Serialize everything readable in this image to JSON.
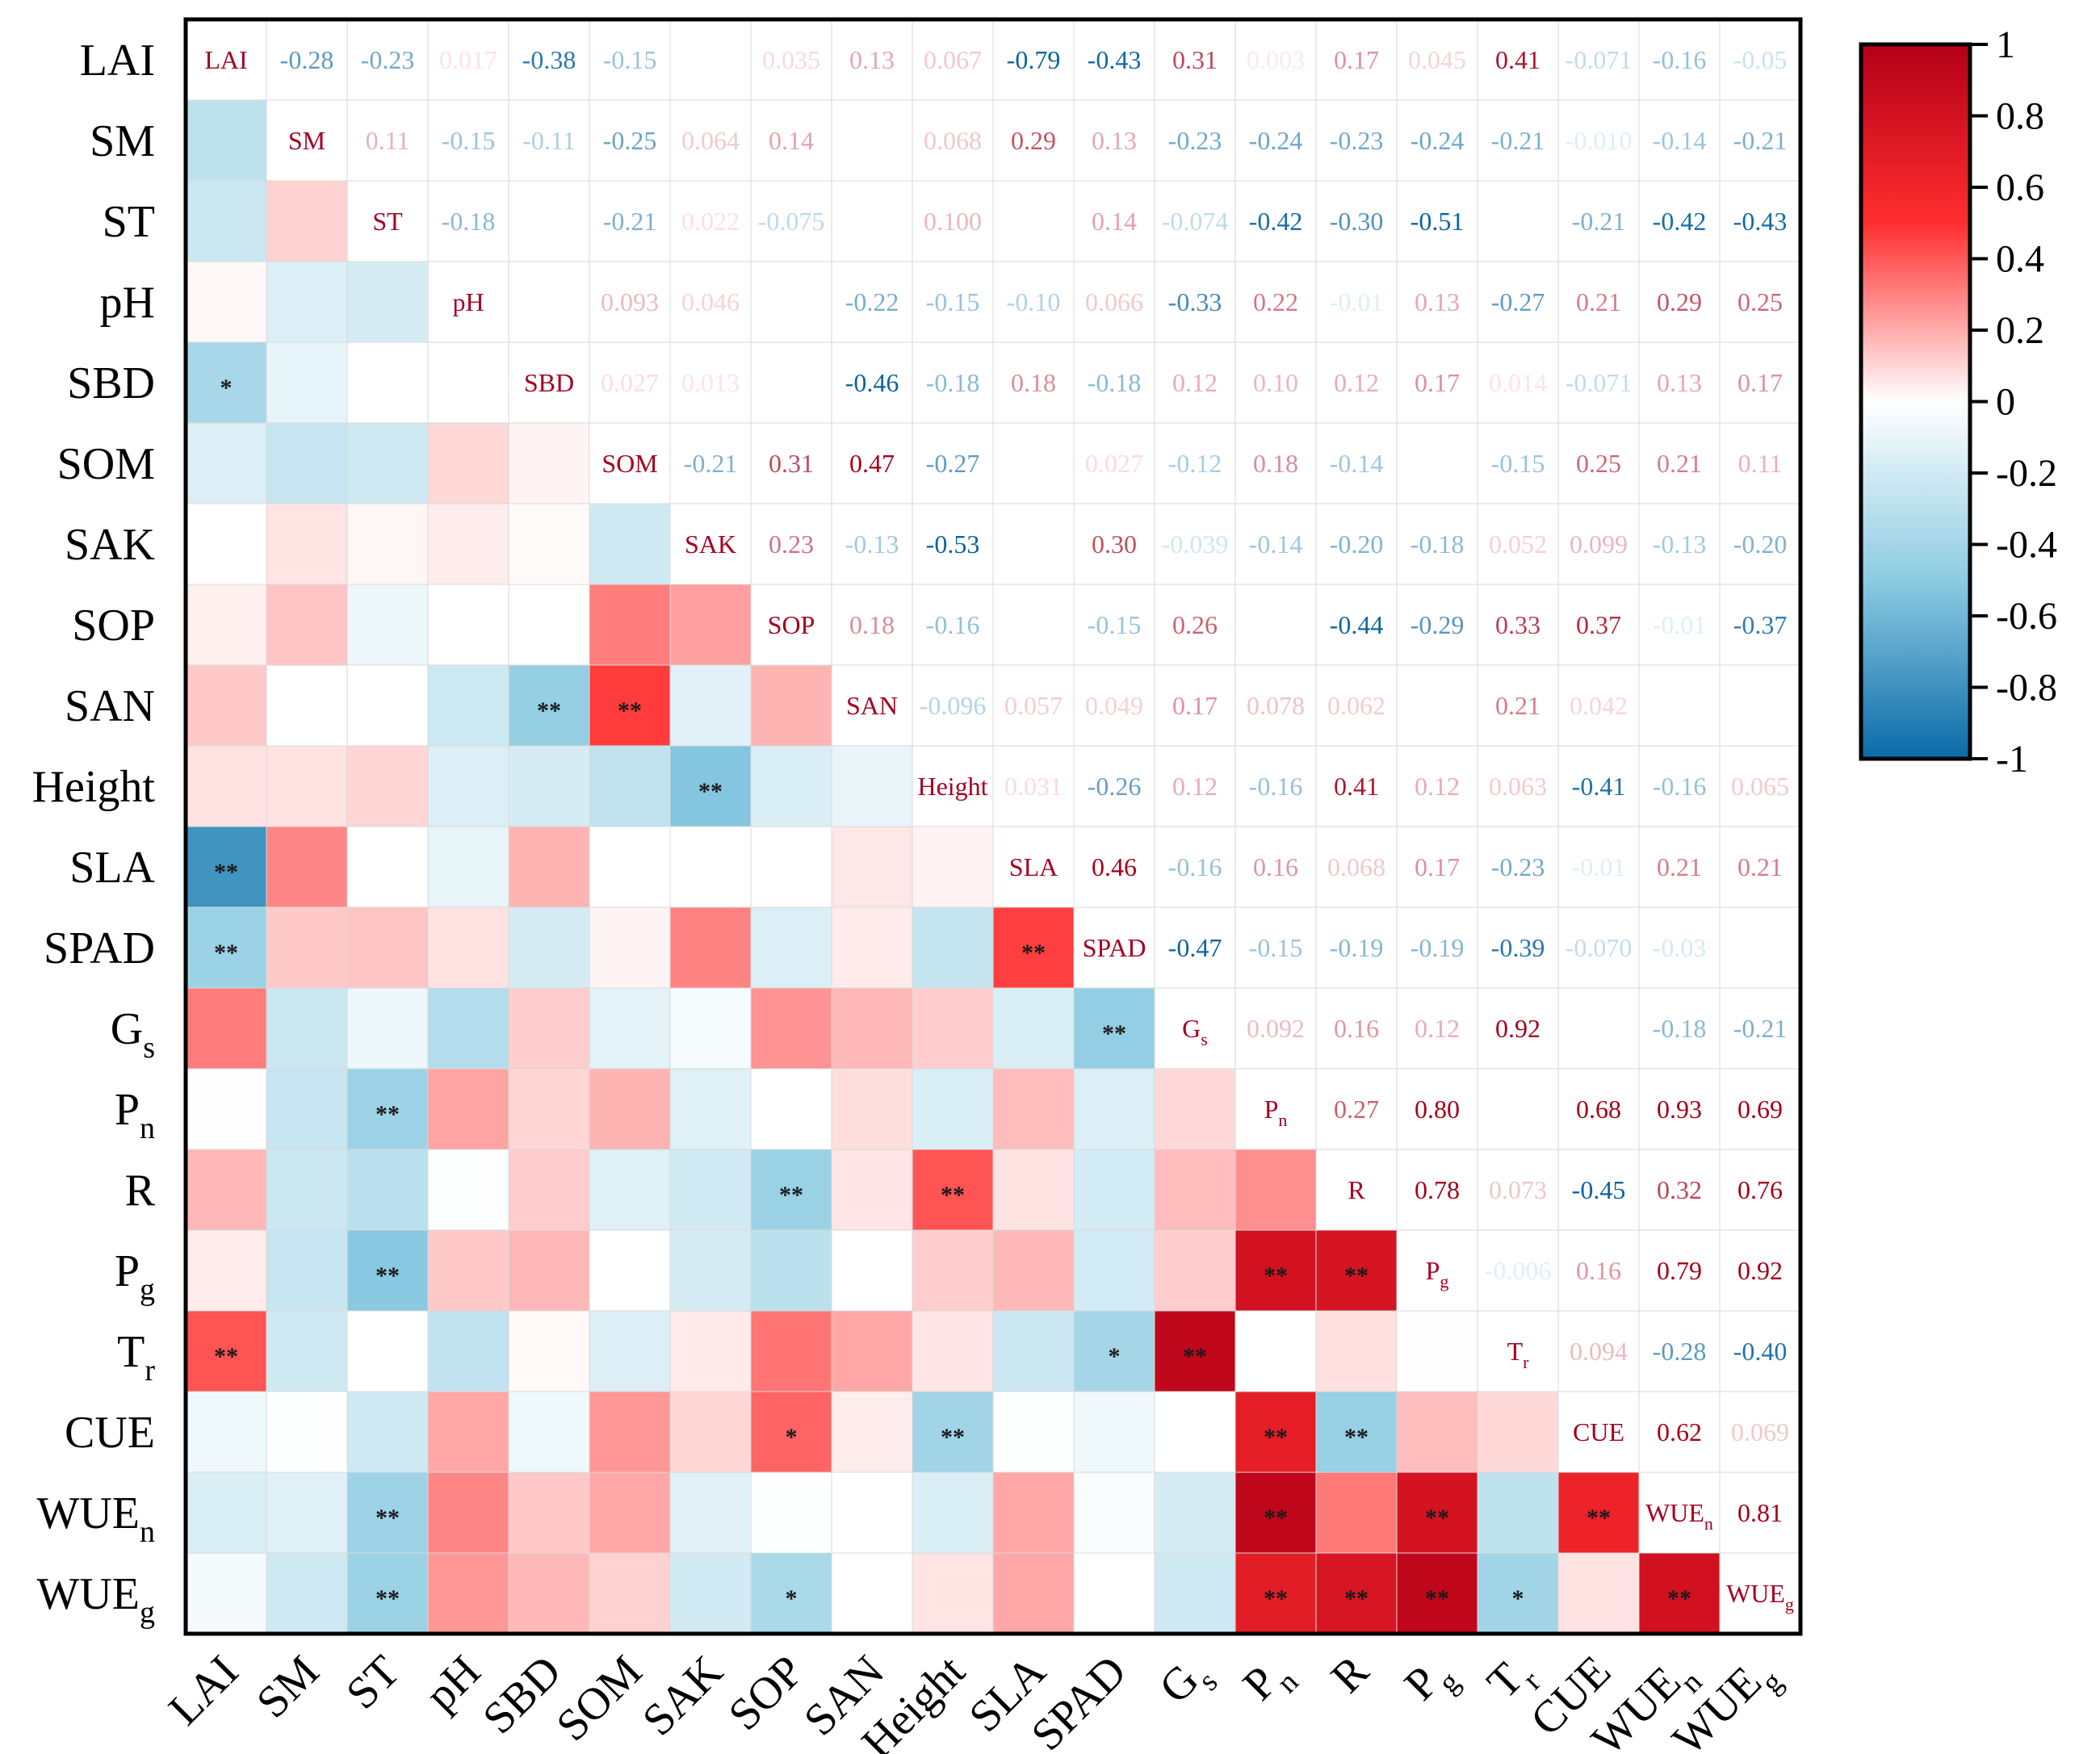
{
  "chart_data": {
    "type": "heatmap",
    "subtype": "correlation-matrix",
    "variables": [
      {
        "label": "LAI",
        "sub": ""
      },
      {
        "label": "SM",
        "sub": ""
      },
      {
        "label": "ST",
        "sub": ""
      },
      {
        "label": "pH",
        "sub": ""
      },
      {
        "label": "SBD",
        "sub": ""
      },
      {
        "label": "SOM",
        "sub": ""
      },
      {
        "label": "SAK",
        "sub": ""
      },
      {
        "label": "SOP",
        "sub": ""
      },
      {
        "label": "SAN",
        "sub": ""
      },
      {
        "label": "Height",
        "sub": ""
      },
      {
        "label": "SLA",
        "sub": ""
      },
      {
        "label": "SPAD",
        "sub": ""
      },
      {
        "label": "G",
        "sub": "s"
      },
      {
        "label": "P",
        "sub": "n"
      },
      {
        "label": "R",
        "sub": ""
      },
      {
        "label": "P",
        "sub": "g"
      },
      {
        "label": "T",
        "sub": "r"
      },
      {
        "label": "CUE",
        "sub": ""
      },
      {
        "label": "WUE",
        "sub": "n"
      },
      {
        "label": "WUE",
        "sub": "g"
      }
    ],
    "upper_triangle_labels": [
      [
        "-0.28",
        "-0.23",
        "0.017",
        "-0.38",
        "-0.15",
        "",
        "0.035",
        "0.13",
        "0.067",
        "-0.79",
        "-0.43",
        "0.31",
        "0.003",
        "0.17",
        "0.045",
        "0.41",
        "-0.071",
        "-0.16",
        "-0.05"
      ],
      [
        "0.11",
        "-0.15",
        "-0.11",
        "-0.25",
        "0.064",
        "0.14",
        "",
        "0.068",
        "0.29",
        "0.13",
        "-0.23",
        "-0.24",
        "-0.23",
        "-0.24",
        "-0.21",
        "-0.010",
        "-0.14",
        "-0.21"
      ],
      [
        "-0.18",
        "",
        "-0.21",
        "0.022",
        "-0.075",
        "",
        "0.100",
        "",
        "0.14",
        "-0.074",
        "-0.42",
        "-0.30",
        "-0.51",
        "",
        "-0.21",
        "-0.42",
        "-0.43"
      ],
      [
        "",
        "0.093",
        "0.046",
        "",
        "-0.22",
        "-0.15",
        "-0.10",
        "0.066",
        "-0.33",
        "0.22",
        "-0.01",
        "0.13",
        "-0.27",
        "0.21",
        "0.29",
        "0.25"
      ],
      [
        "0.027",
        "0.013",
        "",
        "-0.46",
        "-0.18",
        "0.18",
        "-0.18",
        "0.12",
        "0.10",
        "0.12",
        "0.17",
        "0.014",
        "-0.071",
        "0.13",
        "0.17"
      ],
      [
        "-0.21",
        "0.31",
        "0.47",
        "-0.27",
        "",
        "0.027",
        "-0.12",
        "0.18",
        "-0.14",
        "",
        "-0.15",
        "0.25",
        "0.21",
        "0.11"
      ],
      [
        "0.23",
        "-0.13",
        "-0.53",
        "",
        "0.30",
        "-0.039",
        "-0.14",
        "-0.20",
        "-0.18",
        "0.052",
        "0.099",
        "-0.13",
        "-0.20"
      ],
      [
        "0.18",
        "-0.16",
        "",
        "-0.15",
        "0.26",
        "",
        "-0.44",
        "-0.29",
        "0.33",
        "0.37",
        "-0.01",
        "-0.37"
      ],
      [
        "-0.096",
        "0.057",
        "0.049",
        "0.17",
        "0.078",
        "0.062",
        "",
        "0.21",
        "0.042",
        "",
        ""
      ],
      [
        "0.031",
        "-0.26",
        "0.12",
        "-0.16",
        "0.41",
        "0.12",
        "0.063",
        "-0.41",
        "-0.16",
        "0.065"
      ],
      [
        "0.46",
        "-0.16",
        "0.16",
        "0.068",
        "0.17",
        "-0.23",
        "-0.01",
        "0.21",
        "0.21"
      ],
      [
        "-0.47",
        "-0.15",
        "-0.19",
        "-0.19",
        "-0.39",
        "-0.070",
        "-0.03",
        ""
      ],
      [
        "0.092",
        "0.16",
        "0.12",
        "0.92",
        "",
        "-0.18",
        "-0.21"
      ],
      [
        "0.27",
        "0.80",
        "",
        "0.68",
        "0.93",
        "0.69"
      ],
      [
        "0.78",
        "0.073",
        "-0.45",
        "0.32",
        "0.76"
      ],
      [
        "-0.006",
        "0.16",
        "0.79",
        "0.92"
      ],
      [
        "0.094",
        "-0.28",
        "-0.40"
      ],
      [
        "0.62",
        "0.069"
      ],
      [
        "0.81"
      ]
    ],
    "lower_triangle_values": [
      [],
      [
        -0.28
      ],
      [
        -0.23,
        0.11
      ],
      [
        0.017,
        -0.15,
        -0.18
      ],
      [
        -0.38,
        -0.11,
        0.0,
        0.0
      ],
      [
        -0.15,
        -0.25,
        -0.21,
        0.093,
        0.027
      ],
      [
        0.0,
        0.064,
        0.022,
        0.046,
        0.013,
        -0.21
      ],
      [
        0.035,
        0.14,
        -0.075,
        0.0,
        0.0,
        0.31,
        0.23
      ],
      [
        0.13,
        0.0,
        0.0,
        -0.22,
        -0.46,
        0.47,
        -0.13,
        0.18
      ],
      [
        0.067,
        0.068,
        0.1,
        -0.15,
        -0.18,
        -0.27,
        -0.53,
        -0.16,
        -0.096
      ],
      [
        -0.79,
        0.29,
        0.0,
        -0.1,
        0.18,
        0.0,
        0.0,
        0.0,
        0.057,
        0.031
      ],
      [
        -0.43,
        0.13,
        0.14,
        0.066,
        -0.18,
        0.027,
        0.3,
        -0.15,
        0.049,
        -0.26,
        0.46
      ],
      [
        0.31,
        -0.23,
        -0.074,
        -0.33,
        0.12,
        -0.12,
        -0.039,
        0.26,
        0.17,
        0.12,
        -0.16,
        -0.47
      ],
      [
        0.003,
        -0.24,
        -0.42,
        0.22,
        0.1,
        0.18,
        -0.14,
        0.0,
        0.078,
        -0.16,
        0.16,
        -0.15,
        0.092
      ],
      [
        0.17,
        -0.23,
        -0.3,
        -0.01,
        0.12,
        -0.14,
        -0.2,
        -0.44,
        0.062,
        0.41,
        0.068,
        -0.19,
        0.16,
        0.27
      ],
      [
        0.045,
        -0.24,
        -0.51,
        0.13,
        0.17,
        0.0,
        -0.18,
        -0.29,
        0.0,
        0.12,
        0.17,
        -0.19,
        0.12,
        0.8,
        0.78
      ],
      [
        0.41,
        -0.21,
        0.0,
        -0.27,
        0.014,
        -0.15,
        0.052,
        0.33,
        0.21,
        0.063,
        -0.23,
        -0.39,
        0.92,
        0.0,
        0.073,
        -0.006
      ],
      [
        -0.071,
        -0.01,
        -0.21,
        0.21,
        -0.071,
        0.25,
        0.099,
        0.37,
        0.042,
        -0.41,
        -0.01,
        -0.07,
        0.0,
        0.68,
        -0.45,
        0.16,
        0.094
      ],
      [
        -0.16,
        -0.14,
        -0.42,
        0.29,
        0.13,
        0.21,
        -0.13,
        -0.01,
        0.0,
        -0.16,
        0.21,
        -0.03,
        -0.18,
        0.93,
        0.32,
        0.79,
        -0.28,
        0.62
      ],
      [
        -0.05,
        -0.21,
        -0.43,
        0.25,
        0.17,
        0.11,
        -0.2,
        -0.37,
        0.0,
        0.065,
        0.21,
        0.0,
        -0.21,
        0.69,
        0.76,
        0.92,
        -0.4,
        0.069,
        0.81
      ]
    ],
    "significance": [
      {
        "row": 4,
        "col": 0,
        "mark": "*"
      },
      {
        "row": 8,
        "col": 4,
        "mark": "**"
      },
      {
        "row": 8,
        "col": 5,
        "mark": "**"
      },
      {
        "row": 9,
        "col": 6,
        "mark": "**"
      },
      {
        "row": 10,
        "col": 0,
        "mark": "**"
      },
      {
        "row": 11,
        "col": 0,
        "mark": "**"
      },
      {
        "row": 11,
        "col": 10,
        "mark": "**"
      },
      {
        "row": 12,
        "col": 11,
        "mark": "**"
      },
      {
        "row": 13,
        "col": 2,
        "mark": "**"
      },
      {
        "row": 14,
        "col": 7,
        "mark": "**"
      },
      {
        "row": 14,
        "col": 9,
        "mark": "**"
      },
      {
        "row": 15,
        "col": 2,
        "mark": "**"
      },
      {
        "row": 15,
        "col": 13,
        "mark": "**"
      },
      {
        "row": 15,
        "col": 14,
        "mark": "**"
      },
      {
        "row": 16,
        "col": 0,
        "mark": "**"
      },
      {
        "row": 16,
        "col": 11,
        "mark": "*"
      },
      {
        "row": 16,
        "col": 12,
        "mark": "**"
      },
      {
        "row": 17,
        "col": 7,
        "mark": "*"
      },
      {
        "row": 17,
        "col": 9,
        "mark": "**"
      },
      {
        "row": 17,
        "col": 13,
        "mark": "**"
      },
      {
        "row": 17,
        "col": 14,
        "mark": "**"
      },
      {
        "row": 18,
        "col": 2,
        "mark": "**"
      },
      {
        "row": 18,
        "col": 13,
        "mark": "**"
      },
      {
        "row": 18,
        "col": 15,
        "mark": "**"
      },
      {
        "row": 18,
        "col": 17,
        "mark": "**"
      },
      {
        "row": 19,
        "col": 2,
        "mark": "**"
      },
      {
        "row": 19,
        "col": 7,
        "mark": "*"
      },
      {
        "row": 19,
        "col": 13,
        "mark": "**"
      },
      {
        "row": 19,
        "col": 14,
        "mark": "**"
      },
      {
        "row": 19,
        "col": 15,
        "mark": "**"
      },
      {
        "row": 19,
        "col": 16,
        "mark": "*"
      },
      {
        "row": 19,
        "col": 18,
        "mark": "**"
      }
    ],
    "colorbar": {
      "range": [
        -1,
        1
      ],
      "ticks": [
        "1",
        "0.8",
        "0.6",
        "0.4",
        "0.2",
        "0",
        "-0.2",
        "-0.4",
        "-0.6",
        "-0.8",
        "-1"
      ],
      "tick_values": [
        1,
        0.8,
        0.6,
        0.4,
        0.2,
        0,
        -0.2,
        -0.4,
        -0.6,
        -0.8,
        -1
      ],
      "color_negative": "#0a6aa8",
      "color_neutral": "#ffffff",
      "color_positive": "#b40018"
    }
  }
}
